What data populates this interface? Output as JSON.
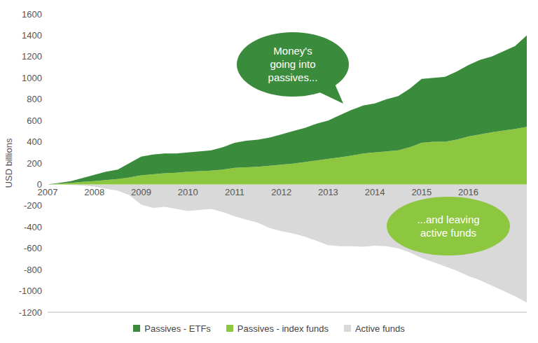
{
  "chart_data": {
    "type": "area",
    "stacked": true,
    "grid": false,
    "legend": "bottom",
    "y_label": "USD billions",
    "xlim": [
      2007,
      2017.25
    ],
    "xticks": [
      2007,
      2008,
      2009,
      2010,
      2011,
      2012,
      2013,
      2014,
      2015,
      2016
    ],
    "ylim": [
      -1200,
      1600
    ],
    "yticks": [
      -1200,
      -1000,
      -800,
      -600,
      -400,
      -200,
      0,
      200,
      400,
      600,
      800,
      1000,
      1200,
      1400,
      1600
    ],
    "x": [
      2007,
      2007.25,
      2007.5,
      2007.75,
      2008,
      2008.25,
      2008.5,
      2008.75,
      2009,
      2009.25,
      2009.5,
      2009.75,
      2010,
      2010.25,
      2010.5,
      2010.75,
      2011,
      2011.25,
      2011.5,
      2011.75,
      2012,
      2012.25,
      2012.5,
      2012.75,
      2013,
      2013.25,
      2013.5,
      2013.75,
      2014,
      2014.25,
      2014.5,
      2014.75,
      2015,
      2015.25,
      2015.5,
      2015.75,
      2016,
      2016.25,
      2016.5,
      2016.75,
      2017,
      2017.25
    ],
    "series": [
      {
        "name": "Passives - ETFs",
        "color": "#3b8b3d",
        "values": [
          0,
          7,
          15,
          35,
          60,
          80,
          90,
          135,
          175,
          185,
          185,
          180,
          180,
          185,
          190,
          210,
          235,
          250,
          255,
          265,
          285,
          305,
          320,
          345,
          360,
          395,
          430,
          450,
          460,
          490,
          510,
          550,
          600,
          600,
          610,
          640,
          670,
          700,
          710,
          745,
          780,
          860
        ]
      },
      {
        "name": "Passives - index funds",
        "color": "#8dc63f",
        "values": [
          0,
          8,
          15,
          25,
          30,
          40,
          50,
          65,
          85,
          95,
          105,
          110,
          120,
          125,
          130,
          140,
          155,
          160,
          165,
          175,
          185,
          195,
          210,
          225,
          240,
          255,
          270,
          290,
          300,
          310,
          320,
          350,
          390,
          400,
          400,
          420,
          450,
          470,
          490,
          505,
          520,
          540
        ]
      },
      {
        "name": "Active funds",
        "color": "#d9d9d9",
        "values": [
          0,
          0,
          -5,
          -10,
          -20,
          -40,
          -60,
          -100,
          -190,
          -220,
          -210,
          -230,
          -250,
          -240,
          -230,
          -260,
          -300,
          -330,
          -360,
          -410,
          -440,
          -460,
          -490,
          -530,
          -570,
          -580,
          -580,
          -585,
          -575,
          -580,
          -600,
          -640,
          -690,
          -730,
          -770,
          -810,
          -860,
          -900,
          -950,
          -1000,
          -1050,
          -1110
        ]
      }
    ],
    "annotations": [
      {
        "text": [
          "Money's",
          "going into",
          "passives..."
        ]
      },
      {
        "text": [
          "...and leaving",
          "active funds"
        ]
      }
    ]
  }
}
